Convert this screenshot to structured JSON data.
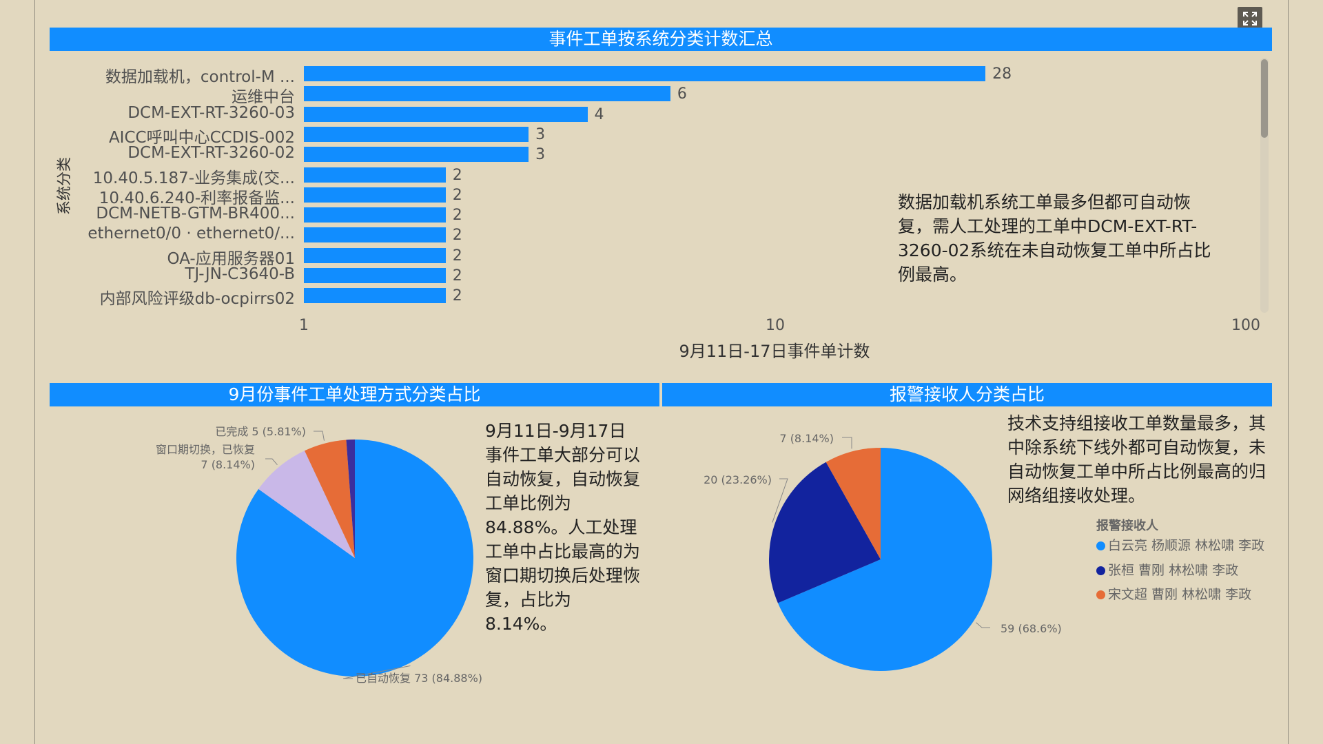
{
  "colors": {
    "accent": "#118DFF",
    "background": "#E2D8BF"
  },
  "toolbar": {
    "expand_icon": "expand-icon"
  },
  "chart_data": [
    {
      "type": "bar",
      "orientation": "horizontal",
      "title": "事件工单按系统分类计数汇总",
      "ylabel": "系统分类",
      "xlabel": "9月11日-17日事件单计数",
      "xscale": "log",
      "xlim": [
        1,
        100
      ],
      "xticks": [
        "1",
        "10",
        "100"
      ],
      "categories": [
        "数据加载机，control-M ...",
        "运维中台",
        "DCM-EXT-RT-3260-03",
        "AICC呼叫中心CCDIS-002",
        "DCM-EXT-RT-3260-02",
        "10.40.5.187-业务集成(交...",
        "10.40.6.240-利率报备监...",
        "DCM-NETB-GTM-BR400...",
        "ethernet0/0 · ethernet0/...",
        "OA-应用服务器01",
        "TJ-JN-C3640-B",
        "内部风险评级db-ocpirrs02"
      ],
      "values": [
        28,
        6,
        4,
        3,
        3,
        2,
        2,
        2,
        2,
        2,
        2,
        2
      ],
      "annotation": "数据加载机系统工单最多但都可自动恢复，需人工处理的工单中DCM-EXT-RT-3260-02系统在未自动恢复工单中所占比例最高。"
    },
    {
      "type": "pie",
      "title": "9月份事件工单处理方式分类占比",
      "slices": [
        {
          "name": "已自动恢复",
          "value": 73,
          "label": "已自动恢复 73 (84.88%)",
          "color": "#118DFF"
        },
        {
          "name": "窗口期切换，已恢复",
          "value": 7,
          "label_line1": "窗口期切换，已恢复",
          "label_line2": "7 (8.14%)",
          "color": "#C9B8E8"
        },
        {
          "name": "已完成",
          "value": 5,
          "label": "已完成 5 (5.81%)",
          "color": "#E66C37"
        },
        {
          "name": "",
          "value": 1,
          "label": "",
          "color": "#3B2E9E"
        }
      ],
      "annotation": "9月11日-9月17日事件工单大部分可以自动恢复，自动恢复工单比例为84.88%。人工处理工单中占比最高的为窗口期切换后处理恢复，占比为8.14%。"
    },
    {
      "type": "pie",
      "title": "报警接收人分类占比",
      "legend_title": "报警接收人",
      "legend_position": "right",
      "slices": [
        {
          "name": "白云亮 杨顺源 林松啸 李政",
          "value": 59,
          "label": "59 (68.6%)",
          "color": "#118DFF"
        },
        {
          "name": "张桓 曹刚 林松啸 李政",
          "value": 20,
          "label": "20 (23.26%)",
          "color": "#12239E"
        },
        {
          "name": "宋文超 曹刚 林松啸 李政",
          "value": 7,
          "label": "7 (8.14%)",
          "color": "#E66C37"
        }
      ],
      "annotation": "技术支持组接收工单数量最多，其中除系统下线外都可自动恢复，未自动恢复工单中所占比例最高的归网络组接收处理。"
    }
  ]
}
